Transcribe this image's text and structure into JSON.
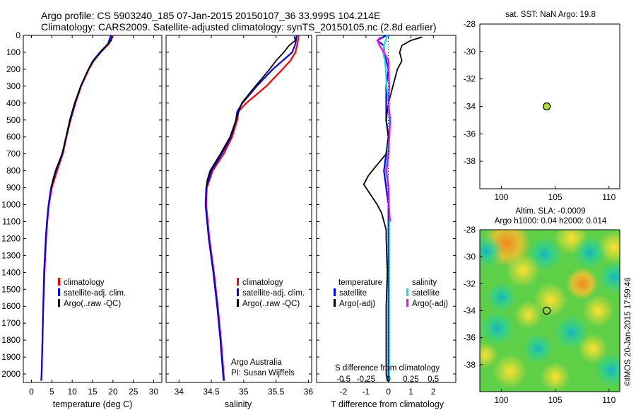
{
  "title": {
    "line1": "Argo profile: CS 5903240_185 07-Jan-2015 20150107_36 33.999S 104.214E",
    "line2": "Climatology: CARS2009. Satellite-adjusted climatology: synTS_20150105.nc (2.8d earlier)"
  },
  "colors": {
    "climatology": "#ff0000",
    "satellite": "#0000ff",
    "argo": "#000000",
    "sal_satellite": "#00e5ee",
    "sal_argo": "#ff00ff",
    "marker": "#b0e020"
  },
  "chart_data": [
    {
      "type": "line",
      "name": "temperature-profile",
      "xlabel": "temperature (deg C)",
      "xlim": [
        -2,
        32
      ],
      "ylim": [
        2050,
        0
      ],
      "xticks": [
        "0",
        "5",
        "10",
        "15",
        "20",
        "25",
        "30"
      ],
      "xtick_values": [
        0,
        5,
        10,
        15,
        20,
        25,
        30
      ],
      "yticks": [
        "0",
        "100",
        "200",
        "300",
        "400",
        "500",
        "600",
        "700",
        "800",
        "900",
        "1000",
        "1100",
        "1200",
        "1300",
        "1400",
        "1500",
        "1600",
        "1700",
        "1800",
        "1900",
        "2000"
      ],
      "ytick_values": [
        0,
        100,
        200,
        300,
        400,
        500,
        600,
        700,
        800,
        900,
        1000,
        1100,
        1200,
        1300,
        1400,
        1500,
        1600,
        1700,
        1800,
        1900,
        2000
      ],
      "series": [
        {
          "name": "climatology",
          "color_key": "climatology",
          "depth": [
            0,
            50,
            100,
            150,
            200,
            300,
            400,
            500,
            600,
            700,
            800,
            900,
            1000,
            1100,
            1200,
            1400,
            1600,
            1800,
            2000,
            2040
          ],
          "values": [
            20.0,
            19.0,
            17.0,
            15.3,
            14.1,
            12.2,
            10.8,
            9.6,
            8.6,
            7.7,
            6.3,
            5.0,
            4.3,
            3.9,
            3.6,
            3.2,
            2.9,
            2.7,
            2.5,
            2.4
          ]
        },
        {
          "name": "satellite-adj. clim.",
          "color_key": "satellite",
          "depth": [
            0,
            50,
            100,
            150,
            200,
            300,
            400,
            500,
            600,
            700,
            800,
            900,
            1000,
            1100,
            1200,
            1400,
            1600,
            1800,
            2000,
            2040
          ],
          "values": [
            19.5,
            18.8,
            16.8,
            15.1,
            14.0,
            12.1,
            10.7,
            9.5,
            8.5,
            7.6,
            6.0,
            4.8,
            4.2,
            3.8,
            3.5,
            3.1,
            2.9,
            2.7,
            2.5,
            2.4
          ]
        },
        {
          "name": "Argo(..raw -QC)",
          "color_key": "argo",
          "depth": [
            5,
            30,
            60,
            100,
            150,
            200,
            300,
            400,
            500,
            600,
            700,
            800,
            850,
            900
          ],
          "values": [
            19.8,
            19.6,
            18.4,
            17.0,
            15.2,
            14.0,
            12.1,
            10.6,
            9.4,
            8.5,
            7.5,
            5.9,
            5.3,
            4.9
          ]
        }
      ],
      "legend": [
        "climatology",
        "satellite-adj. clim.",
        "Argo(..raw -QC)"
      ]
    },
    {
      "type": "line",
      "name": "salinity-profile",
      "xlabel": "salinity",
      "xlim": [
        33.8,
        36.05
      ],
      "ylim": [
        2050,
        0
      ],
      "xticks": [
        "34",
        "34.5",
        "35",
        "35.5",
        "36"
      ],
      "xtick_values": [
        34,
        34.5,
        35,
        35.5,
        36
      ],
      "series": [
        {
          "name": "climatology",
          "color_key": "climatology",
          "depth": [
            0,
            50,
            100,
            150,
            200,
            300,
            400,
            450,
            500,
            600,
            700,
            800,
            900,
            1000,
            1200,
            1400,
            1600,
            1800,
            2000,
            2040
          ],
          "values": [
            35.85,
            35.83,
            35.8,
            35.72,
            35.6,
            35.35,
            35.04,
            34.92,
            34.9,
            34.82,
            34.69,
            34.52,
            34.43,
            34.42,
            34.47,
            34.54,
            34.6,
            34.65,
            34.69,
            34.7
          ]
        },
        {
          "name": "satellite-adj. clim.",
          "color_key": "satellite",
          "depth": [
            0,
            50,
            100,
            150,
            200,
            300,
            400,
            450,
            500,
            600,
            700,
            800,
            900,
            1000,
            1200,
            1400,
            1600,
            1800,
            2000,
            2040
          ],
          "values": [
            35.82,
            35.8,
            35.75,
            35.6,
            35.45,
            35.2,
            34.98,
            34.9,
            34.88,
            34.8,
            34.66,
            34.5,
            34.42,
            34.41,
            34.46,
            34.53,
            34.59,
            34.64,
            34.68,
            34.69
          ]
        },
        {
          "name": "Argo(..raw -QC)",
          "color_key": "argo",
          "depth": [
            5,
            30,
            60,
            100,
            150,
            200,
            300,
            400,
            500,
            600,
            700,
            800,
            850,
            900
          ],
          "values": [
            35.78,
            35.8,
            35.7,
            35.62,
            35.5,
            35.4,
            35.18,
            34.97,
            34.88,
            34.79,
            34.64,
            34.48,
            34.44,
            34.42
          ]
        }
      ],
      "legend": [
        "climatology",
        "satellite-adj. clim.",
        "Argo(..raw -QC)"
      ],
      "annotation": {
        "line1": "Argo Australia",
        "line2": "PI: Susan Wijffels"
      }
    },
    {
      "type": "line",
      "name": "difference-profile",
      "xlabel": "T difference from climatology",
      "xlabel_top": "S difference from climatology",
      "xlim": [
        -3.2,
        3.0
      ],
      "xticks": [
        "-2",
        "-1",
        "0",
        "1",
        "2"
      ],
      "xtick_values": [
        -2,
        -1,
        0,
        1,
        2
      ],
      "xticks_sal": [
        "-0.5",
        "-0.25",
        "0",
        "0.25",
        "0.5"
      ],
      "xtick_values_sal": [
        -0.5,
        -0.25,
        0,
        0.25,
        0.5
      ],
      "series": [
        {
          "name": "temperature satellite",
          "color_key": "satellite",
          "depth": [
            0,
            30,
            60,
            100,
            150,
            200,
            300,
            400,
            500,
            600,
            700,
            800,
            900,
            1000,
            1200,
            1500,
            1800,
            2040
          ],
          "values": [
            -0.1,
            -0.5,
            -0.2,
            -0.2,
            -0.1,
            0.0,
            -0.1,
            -0.1,
            -0.1,
            0.0,
            -0.1,
            -0.2,
            -0.1,
            0.0,
            0.0,
            0.0,
            0.0,
            0.0
          ]
        },
        {
          "name": "temperature Argo(-adj)",
          "color_key": "argo",
          "depth": [
            10,
            30,
            60,
            100,
            150,
            200,
            300,
            400,
            500,
            600,
            700,
            780,
            830,
            880,
            920,
            960,
            1000,
            1050,
            1100,
            1150,
            1200,
            1400,
            1600,
            1800,
            2000,
            2040
          ],
          "values": [
            1.5,
            1.0,
            0.6,
            0.5,
            0.6,
            0.4,
            0.2,
            0.0,
            -0.1,
            0.0,
            -0.1,
            -0.6,
            -0.9,
            -1.1,
            -0.9,
            -0.7,
            -0.5,
            -0.3,
            -0.2,
            -0.1,
            -0.1,
            -0.05,
            -0.1,
            -0.1,
            -0.1,
            -0.05
          ]
        },
        {
          "name": "salinity satellite",
          "color_key": "sal_satellite",
          "depth": [
            0,
            60,
            100,
            150,
            200,
            300,
            400,
            500,
            600,
            700,
            800,
            900,
            1000,
            1200,
            1400,
            1600,
            1800,
            2040
          ],
          "values": [
            -0.01,
            -0.05,
            -0.06,
            -0.04,
            -0.03,
            -0.02,
            0.0,
            0.01,
            0.01,
            -0.01,
            -0.03,
            0.0,
            0.01,
            0.01,
            0.01,
            0.01,
            0.01,
            0.01
          ]
        },
        {
          "name": "salinity Argo(-adj)",
          "color_key": "sal_argo",
          "depth": [
            10,
            30,
            60,
            100,
            150,
            200,
            300,
            400,
            500,
            600,
            700,
            800,
            900,
            1000,
            1100
          ],
          "values": [
            -0.09,
            -0.12,
            -0.1,
            -0.05,
            0.0,
            0.0,
            0.01,
            0.0,
            0.02,
            0.01,
            0.0,
            -0.02,
            0.0,
            0.0,
            0.02
          ]
        }
      ],
      "legend": {
        "temperature_header": "temperature",
        "salinity_header": "salinity",
        "temperature": [
          "satellite",
          "Argo(-adj)"
        ],
        "salinity": [
          "satellite",
          "Argo(-adj)"
        ]
      }
    },
    {
      "type": "scatter",
      "name": "sst-map",
      "title": "sat. SST: NaN Argo: 19.8",
      "xlim": [
        98,
        111
      ],
      "ylim": [
        -40,
        -28
      ],
      "xticks": [
        "100",
        "105",
        "110"
      ],
      "xtick_values": [
        100,
        105,
        110
      ],
      "yticks": [
        "-28",
        "-30",
        "-32",
        "-34",
        "-36",
        "-38"
      ],
      "ytick_values": [
        -28,
        -30,
        -32,
        -34,
        -36,
        -38
      ],
      "points": [
        {
          "lon": 104.214,
          "lat": -33.999
        }
      ]
    },
    {
      "type": "heatmap",
      "name": "sla-map",
      "title_line1": "Altim. SLA: -0.0009",
      "title_line2": "Argo h1000: 0.04 h2000: 0.014",
      "xlim": [
        98,
        111
      ],
      "ylim": [
        -40,
        -28
      ],
      "xticks": [
        "100",
        "105",
        "110"
      ],
      "xtick_values": [
        100,
        105,
        110
      ],
      "yticks": [
        "-28",
        "-30",
        "-32",
        "-34",
        "-36",
        "-38"
      ],
      "ytick_values": [
        -28,
        -30,
        -32,
        -34,
        -36,
        -38
      ],
      "points": [
        {
          "lon": 104.214,
          "lat": -33.999
        }
      ],
      "side_label": "©IMOS 20-Jan-2015 17:59:46"
    }
  ]
}
